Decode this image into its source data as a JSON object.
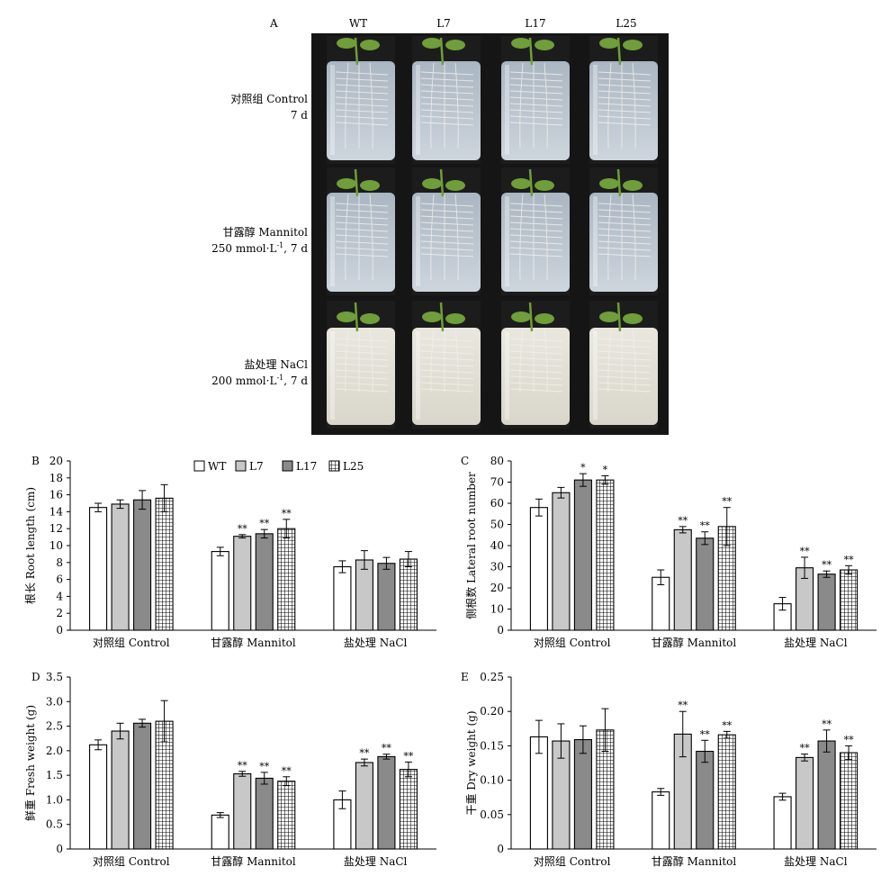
{
  "colors": {
    "background": "#ffffff",
    "photo_background": "#151515",
    "medium_control": "#b9c4cf",
    "medium_nacl": "#e4e2d8",
    "plant": "#6f9e3a",
    "root": "#f2f0ea",
    "wt_fill": "#ffffff",
    "l7_fill": "#c8c8c8",
    "l17_fill": "#8a8a8a",
    "l25_fill": "crosshatch"
  },
  "panel_a": {
    "letter": "A",
    "columns": [
      "WT",
      "L7",
      "L17",
      "L25"
    ],
    "rows": [
      {
        "line1": "对照组 Control",
        "line2": "7 d"
      },
      {
        "line1": "甘露醇 Mannitol",
        "line2_pre": "250 mmol·L",
        "line2_sup": "-1",
        "line2_post": ", 7 d"
      },
      {
        "line1": "盐处理 NaCl",
        "line2_pre": "200 mmol·L",
        "line2_sup": "-1",
        "line2_post": ", 7 d"
      }
    ]
  },
  "legend": {
    "items": [
      "WT",
      "L7",
      "L17",
      "L25"
    ]
  },
  "chart_data": [
    {
      "panel": "B",
      "type": "bar",
      "ylabel": "根长 Root length (cm)",
      "categories": [
        "对照组 Control",
        "甘露醇 Mannitol",
        "盐处理 NaCl"
      ],
      "ylim": [
        0,
        20
      ],
      "yticks": [
        "0",
        "2",
        "4",
        "6",
        "8",
        "10",
        "12",
        "14",
        "16",
        "18",
        "20"
      ],
      "ytick_values": [
        0,
        2,
        4,
        6,
        8,
        10,
        12,
        14,
        16,
        18,
        20
      ],
      "series": [
        {
          "name": "WT",
          "values": [
            14.5,
            9.3,
            7.5
          ],
          "errors": [
            0.5,
            0.5,
            0.7
          ],
          "marks": [
            "",
            "",
            ""
          ]
        },
        {
          "name": "L7",
          "values": [
            14.9,
            11.1,
            8.3
          ],
          "errors": [
            0.5,
            0.2,
            1.1
          ],
          "marks": [
            "",
            "**",
            ""
          ]
        },
        {
          "name": "L17",
          "values": [
            15.4,
            11.4,
            7.9
          ],
          "errors": [
            1.1,
            0.5,
            0.7
          ],
          "marks": [
            "",
            "**",
            ""
          ]
        },
        {
          "name": "L25",
          "values": [
            15.6,
            12.0,
            8.4
          ],
          "errors": [
            1.6,
            1.1,
            0.9
          ],
          "marks": [
            "",
            "**",
            ""
          ]
        }
      ]
    },
    {
      "panel": "C",
      "type": "bar",
      "ylabel": "侧根数 Lateral root number",
      "categories": [
        "对照组 Control",
        "甘露醇 Mannitol",
        "盐处理 NaCl"
      ],
      "ylim": [
        0,
        80
      ],
      "yticks": [
        "0",
        "10",
        "20",
        "30",
        "40",
        "50",
        "60",
        "70",
        "80"
      ],
      "ytick_values": [
        0,
        10,
        20,
        30,
        40,
        50,
        60,
        70,
        80
      ],
      "series": [
        {
          "name": "WT",
          "values": [
            58,
            25,
            12.5
          ],
          "errors": [
            4,
            3.5,
            3
          ],
          "marks": [
            "",
            "",
            ""
          ]
        },
        {
          "name": "L7",
          "values": [
            65,
            47.5,
            29.5
          ],
          "errors": [
            2.5,
            1.5,
            5
          ],
          "marks": [
            "",
            "**",
            "**"
          ]
        },
        {
          "name": "L17",
          "values": [
            71,
            43.5,
            26.5
          ],
          "errors": [
            3,
            3,
            1.5
          ],
          "marks": [
            "*",
            "**",
            "**"
          ]
        },
        {
          "name": "L25",
          "values": [
            71,
            49,
            28.5
          ],
          "errors": [
            2,
            9,
            2
          ],
          "marks": [
            "*",
            "**",
            "**"
          ]
        }
      ]
    },
    {
      "panel": "D",
      "type": "bar",
      "ylabel": "鲜重 Fresh weight (g)",
      "categories": [
        "对照组 Control",
        "甘露醇 Mannitol",
        "盐处理 NaCl"
      ],
      "ylim": [
        0,
        3.5
      ],
      "yticks": [
        "0",
        "0.5",
        "1.0",
        "1.5",
        "2.0",
        "2.5",
        "3.0",
        "3.5"
      ],
      "ytick_values": [
        0,
        0.5,
        1.0,
        1.5,
        2.0,
        2.5,
        3.0,
        3.5
      ],
      "series": [
        {
          "name": "WT",
          "values": [
            2.12,
            0.69,
            1.0
          ],
          "errors": [
            0.1,
            0.05,
            0.18
          ],
          "marks": [
            "",
            "",
            ""
          ]
        },
        {
          "name": "L7",
          "values": [
            2.4,
            1.53,
            1.76
          ],
          "errors": [
            0.16,
            0.05,
            0.07
          ],
          "marks": [
            "",
            "**",
            "**"
          ]
        },
        {
          "name": "L17",
          "values": [
            2.56,
            1.44,
            1.88
          ],
          "errors": [
            0.08,
            0.12,
            0.05
          ],
          "marks": [
            "",
            "**",
            "**"
          ]
        },
        {
          "name": "L25",
          "values": [
            2.6,
            1.38,
            1.62
          ],
          "errors": [
            0.42,
            0.09,
            0.15
          ],
          "marks": [
            "",
            "**",
            "**"
          ]
        }
      ]
    },
    {
      "panel": "E",
      "type": "bar",
      "ylabel": "干重 Dry weight (g)",
      "categories": [
        "对照组 Control",
        "甘露醇 Mannitol",
        "盐处理 NaCl"
      ],
      "ylim": [
        0,
        0.25
      ],
      "yticks": [
        "0",
        "0.05",
        "0.10",
        "0.15",
        "0.20",
        "0.25"
      ],
      "ytick_values": [
        0,
        0.05,
        0.1,
        0.15,
        0.2,
        0.25
      ],
      "series": [
        {
          "name": "WT",
          "values": [
            0.163,
            0.083,
            0.076
          ],
          "errors": [
            0.024,
            0.005,
            0.005
          ],
          "marks": [
            "",
            "",
            ""
          ]
        },
        {
          "name": "L7",
          "values": [
            0.157,
            0.167,
            0.133
          ],
          "errors": [
            0.025,
            0.033,
            0.005
          ],
          "marks": [
            "",
            "**",
            "**"
          ]
        },
        {
          "name": "L17",
          "values": [
            0.159,
            0.142,
            0.157
          ],
          "errors": [
            0.02,
            0.016,
            0.016
          ],
          "marks": [
            "",
            "**",
            "**"
          ]
        },
        {
          "name": "L25",
          "values": [
            0.173,
            0.166,
            0.14
          ],
          "errors": [
            0.031,
            0.005,
            0.01
          ],
          "marks": [
            "",
            "**",
            "**"
          ]
        }
      ]
    }
  ]
}
